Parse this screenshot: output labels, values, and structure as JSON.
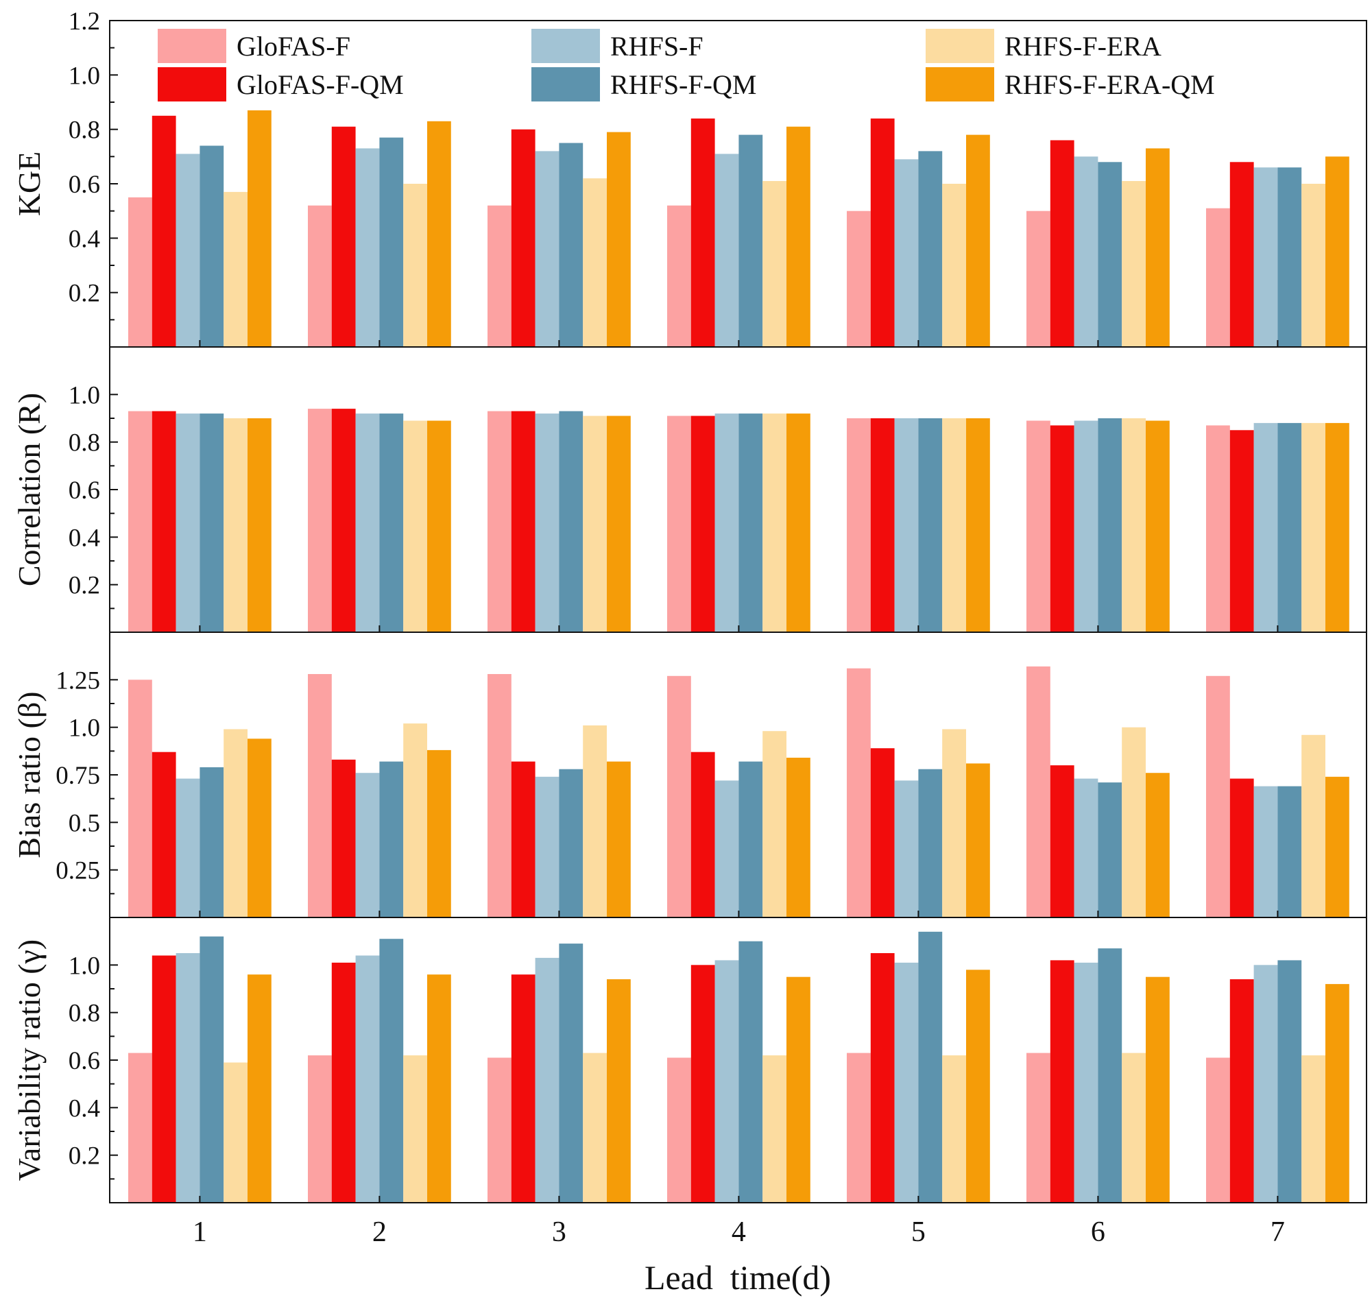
{
  "chart_data": {
    "type": "bar",
    "categories": [
      "1",
      "2",
      "3",
      "4",
      "5",
      "6",
      "7"
    ],
    "xlabel": "Lead  time(d)",
    "legend": {
      "placement": "top",
      "entries": [
        "GloFAS-F",
        "RHFS-F",
        "RHFS-F-ERA",
        "GloFAS-F-QM",
        "RHFS-F-QM",
        "RHFS-F-ERA-QM"
      ]
    },
    "series_names": [
      "GloFAS-F",
      "GloFAS-F-QM",
      "RHFS-F",
      "RHFS-F-QM",
      "RHFS-F-ERA",
      "RHFS-F-ERA-QM"
    ],
    "colors": {
      "GloFAS-F": "#fca2a2",
      "GloFAS-F-QM": "#f20c0c",
      "RHFS-F": "#a2c3d4",
      "RHFS-F-QM": "#5d93ad",
      "RHFS-F-ERA": "#fcdca0",
      "RHFS-F-ERA-QM": "#f59c08"
    },
    "panels": [
      {
        "ylabel": "KGE",
        "ylim": [
          0,
          1.2
        ],
        "yticks": [
          "0.2",
          "0.4",
          "0.6",
          "0.8",
          "1.0",
          "1.2"
        ],
        "ytick_values": [
          0.2,
          0.4,
          0.6,
          0.8,
          1.0,
          1.2
        ],
        "series": [
          {
            "name": "GloFAS-F",
            "values": [
              0.55,
              0.52,
              0.52,
              0.52,
              0.5,
              0.5,
              0.51
            ]
          },
          {
            "name": "GloFAS-F-QM",
            "values": [
              0.85,
              0.81,
              0.8,
              0.84,
              0.84,
              0.76,
              0.68
            ]
          },
          {
            "name": "RHFS-F",
            "values": [
              0.71,
              0.73,
              0.72,
              0.71,
              0.69,
              0.7,
              0.66
            ]
          },
          {
            "name": "RHFS-F-QM",
            "values": [
              0.74,
              0.77,
              0.75,
              0.78,
              0.72,
              0.68,
              0.66
            ]
          },
          {
            "name": "RHFS-F-ERA",
            "values": [
              0.57,
              0.6,
              0.62,
              0.61,
              0.6,
              0.61,
              0.6
            ]
          },
          {
            "name": "RHFS-F-ERA-QM",
            "values": [
              0.87,
              0.83,
              0.79,
              0.81,
              0.78,
              0.73,
              0.7
            ]
          }
        ]
      },
      {
        "ylabel": "Correlation (R)",
        "ylim": [
          0,
          1.2
        ],
        "yticks": [
          "0.2",
          "0.4",
          "0.6",
          "0.8",
          "1.0"
        ],
        "ytick_values": [
          0.2,
          0.4,
          0.6,
          0.8,
          1.0
        ],
        "series": [
          {
            "name": "GloFAS-F",
            "values": [
              0.93,
              0.94,
              0.93,
              0.91,
              0.9,
              0.89,
              0.87
            ]
          },
          {
            "name": "GloFAS-F-QM",
            "values": [
              0.93,
              0.94,
              0.93,
              0.91,
              0.9,
              0.87,
              0.85
            ]
          },
          {
            "name": "RHFS-F",
            "values": [
              0.92,
              0.92,
              0.92,
              0.92,
              0.9,
              0.89,
              0.88
            ]
          },
          {
            "name": "RHFS-F-QM",
            "values": [
              0.92,
              0.92,
              0.93,
              0.92,
              0.9,
              0.9,
              0.88
            ]
          },
          {
            "name": "RHFS-F-ERA",
            "values": [
              0.9,
              0.89,
              0.91,
              0.92,
              0.9,
              0.9,
              0.88
            ]
          },
          {
            "name": "RHFS-F-ERA-QM",
            "values": [
              0.9,
              0.89,
              0.91,
              0.92,
              0.9,
              0.89,
              0.88
            ]
          }
        ]
      },
      {
        "ylabel": "Bias ratio (β)",
        "ylim": [
          0,
          1.5
        ],
        "yticks": [
          "0.25",
          "0.5",
          "0.75",
          "1.0",
          "1.25"
        ],
        "ytick_values": [
          0.25,
          0.5,
          0.75,
          1.0,
          1.25
        ],
        "series": [
          {
            "name": "GloFAS-F",
            "values": [
              1.25,
              1.28,
              1.28,
              1.27,
              1.31,
              1.32,
              1.27
            ]
          },
          {
            "name": "GloFAS-F-QM",
            "values": [
              0.87,
              0.83,
              0.82,
              0.87,
              0.89,
              0.8,
              0.73
            ]
          },
          {
            "name": "RHFS-F",
            "values": [
              0.73,
              0.76,
              0.74,
              0.72,
              0.72,
              0.73,
              0.69
            ]
          },
          {
            "name": "RHFS-F-QM",
            "values": [
              0.79,
              0.82,
              0.78,
              0.82,
              0.78,
              0.71,
              0.69
            ]
          },
          {
            "name": "RHFS-F-ERA",
            "values": [
              0.99,
              1.02,
              1.01,
              0.98,
              0.99,
              1.0,
              0.96
            ]
          },
          {
            "name": "RHFS-F-ERA-QM",
            "values": [
              0.94,
              0.88,
              0.82,
              0.84,
              0.81,
              0.76,
              0.74
            ]
          }
        ]
      },
      {
        "ylabel": "Variability ratio (γ)",
        "ylim": [
          0,
          1.2
        ],
        "yticks": [
          "0.2",
          "0.4",
          "0.6",
          "0.8",
          "1.0"
        ],
        "ytick_values": [
          0.2,
          0.4,
          0.6,
          0.8,
          1.0
        ],
        "series": [
          {
            "name": "GloFAS-F",
            "values": [
              0.63,
              0.62,
              0.61,
              0.61,
              0.63,
              0.63,
              0.61
            ]
          },
          {
            "name": "GloFAS-F-QM",
            "values": [
              1.04,
              1.01,
              0.96,
              1.0,
              1.05,
              1.02,
              0.94
            ]
          },
          {
            "name": "RHFS-F",
            "values": [
              1.05,
              1.04,
              1.03,
              1.02,
              1.01,
              1.01,
              1.0
            ]
          },
          {
            "name": "RHFS-F-QM",
            "values": [
              1.12,
              1.11,
              1.09,
              1.1,
              1.14,
              1.07,
              1.02
            ]
          },
          {
            "name": "RHFS-F-ERA",
            "values": [
              0.59,
              0.62,
              0.63,
              0.62,
              0.62,
              0.63,
              0.62
            ]
          },
          {
            "name": "RHFS-F-ERA-QM",
            "values": [
              0.96,
              0.96,
              0.94,
              0.95,
              0.98,
              0.95,
              0.92
            ]
          }
        ]
      }
    ]
  }
}
